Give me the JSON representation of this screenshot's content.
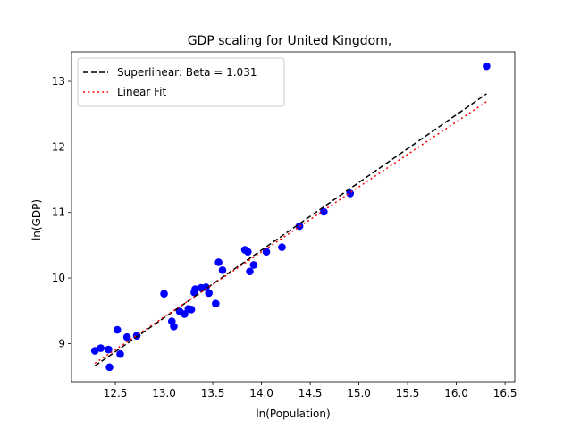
{
  "chart_data": {
    "type": "scatter",
    "title": "GDP scaling for United Kingdom,",
    "xlabel": "ln(Population)",
    "ylabel": "ln(GDP)",
    "xlim": [
      12.05,
      16.6
    ],
    "ylim": [
      8.42,
      13.45
    ],
    "xticks": [
      12.5,
      13.0,
      13.5,
      14.0,
      14.5,
      15.0,
      15.5,
      16.0,
      16.5
    ],
    "yticks": [
      9,
      10,
      11,
      12,
      13
    ],
    "grid": false,
    "legend_position": "top-left",
    "series": [
      {
        "kind": "scatter",
        "color": "#0000ff",
        "points": [
          [
            12.29,
            8.89
          ],
          [
            12.35,
            8.93
          ],
          [
            12.43,
            8.91
          ],
          [
            12.44,
            8.64
          ],
          [
            12.52,
            9.21
          ],
          [
            12.55,
            8.84
          ],
          [
            12.62,
            9.1
          ],
          [
            12.72,
            9.12
          ],
          [
            13.0,
            9.76
          ],
          [
            13.08,
            9.34
          ],
          [
            13.1,
            9.26
          ],
          [
            13.16,
            9.49
          ],
          [
            13.21,
            9.45
          ],
          [
            13.25,
            9.53
          ],
          [
            13.28,
            9.52
          ],
          [
            13.31,
            9.78
          ],
          [
            13.32,
            9.83
          ],
          [
            13.38,
            9.85
          ],
          [
            13.43,
            9.86
          ],
          [
            13.46,
            9.77
          ],
          [
            13.53,
            9.61
          ],
          [
            13.56,
            10.24
          ],
          [
            13.6,
            10.12
          ],
          [
            13.83,
            10.43
          ],
          [
            13.86,
            10.4
          ],
          [
            13.88,
            10.1
          ],
          [
            13.92,
            10.2
          ],
          [
            14.05,
            10.4
          ],
          [
            14.21,
            10.47
          ],
          [
            14.39,
            10.79
          ],
          [
            14.64,
            11.01
          ],
          [
            14.91,
            11.29
          ],
          [
            16.31,
            13.23
          ]
        ]
      },
      {
        "kind": "line",
        "name": "Superlinear: Beta = 1.031",
        "color": "#000000",
        "dash": "dashed",
        "points": [
          [
            12.29,
            8.66
          ],
          [
            16.31,
            12.81
          ]
        ]
      },
      {
        "kind": "line",
        "name": "Linear Fit",
        "color": "#ff0000",
        "dash": "dotted",
        "points": [
          [
            12.29,
            8.7
          ],
          [
            16.31,
            12.69
          ]
        ]
      }
    ]
  }
}
